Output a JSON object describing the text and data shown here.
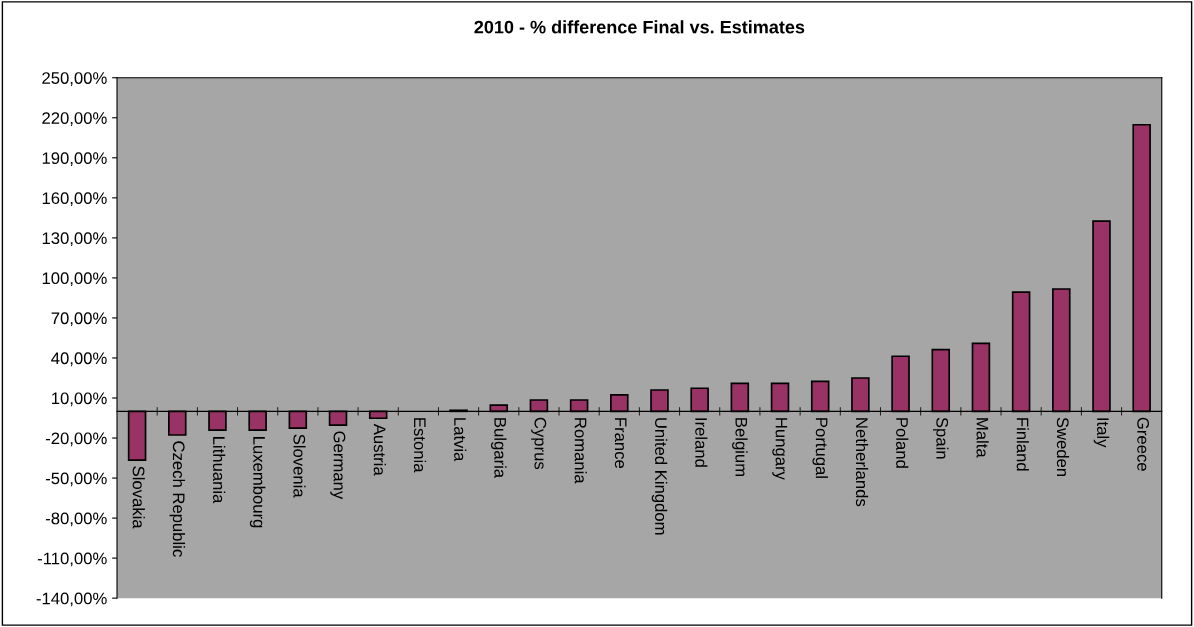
{
  "chart_data": {
    "type": "bar",
    "title": "2010 - % difference Final vs. Estimates",
    "categories": [
      "Slovakia",
      "Czech Republic",
      "Lithuania",
      "Luxembourg",
      "Slovenia",
      "Germany",
      "Austria",
      "Estonia",
      "Latvia",
      "Bulgaria",
      "Cyprus",
      "Romania",
      "France",
      "United Kingdom",
      "Ireland",
      "Belgium",
      "Hungary",
      "Portugal",
      "Netherlands",
      "Poland",
      "Spain",
      "Malta",
      "Finland",
      "Sweden",
      "Italy",
      "Greece"
    ],
    "values": [
      -36.5,
      -17.7,
      -14.1,
      -14.1,
      -12.6,
      -10.3,
      -5.2,
      0,
      0.8,
      4.6,
      8.5,
      8.5,
      12.3,
      16,
      17.3,
      21,
      21,
      22.5,
      25,
      41.3,
      46.3,
      50.9,
      89.4,
      91.7,
      142.5,
      214.8
    ],
    "color": "#993366",
    "ylim": [
      -140,
      250
    ],
    "yticks": [
      {
        "value": -140,
        "label": "-140,00%"
      },
      {
        "value": -110,
        "label": "-110,00%"
      },
      {
        "value": -80,
        "label": "-80,00%"
      },
      {
        "value": -50,
        "label": "-50,00%"
      },
      {
        "value": -20,
        "label": "-20,00%"
      },
      {
        "value": 10,
        "label": "10,00%"
      },
      {
        "value": 40,
        "label": "40,00%"
      },
      {
        "value": 70,
        "label": "70,00%"
      },
      {
        "value": 100,
        "label": "100,00%"
      },
      {
        "value": 130,
        "label": "130,00%"
      },
      {
        "value": 160,
        "label": "160,00%"
      },
      {
        "value": 190,
        "label": "190,00%"
      },
      {
        "value": 220,
        "label": "220,00%"
      },
      {
        "value": 250,
        "label": "250,00%"
      }
    ],
    "grid": false,
    "legend": false
  }
}
